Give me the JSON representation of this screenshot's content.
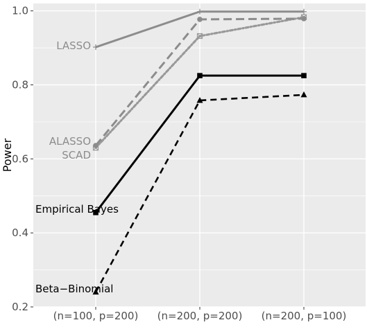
{
  "chart_data": {
    "type": "line",
    "title": "",
    "xlabel": "",
    "ylabel": "Power",
    "categories": [
      "(n=100, p=200)",
      "(n=200, p=200)",
      "(n=200, p=100)"
    ],
    "ylim": [
      0.2,
      1.02
    ],
    "yticks": [
      0.2,
      0.4,
      0.6,
      0.8,
      1.0
    ],
    "ytick_labels": [
      "0.2",
      "0.4",
      "0.6",
      "0.8",
      "1.0"
    ],
    "grid": true,
    "legend": "direct labels at left",
    "background_color": "#ebebeb",
    "grid_color": "#ffffff",
    "series": [
      {
        "name": "LASSO",
        "values": [
          0.902,
          0.998,
          0.998
        ],
        "color": "#8c8c8c",
        "dash": "solid",
        "marker": "plus"
      },
      {
        "name": "ALASSO",
        "values": [
          0.636,
          0.977,
          0.979
        ],
        "color": "#8c8c8c",
        "dash": "longdash",
        "marker": "circle"
      },
      {
        "name": "SCAD",
        "values": [
          0.63,
          0.932,
          0.983
        ],
        "color": "#999999",
        "dash": "dotdash",
        "marker": "boxx"
      },
      {
        "name": "Empirical Bayes",
        "values": [
          0.455,
          0.825,
          0.825
        ],
        "color": "#000000",
        "dash": "solid",
        "marker": "square"
      },
      {
        "name": "Beta−Binomial",
        "values": [
          0.24,
          0.758,
          0.773
        ],
        "color": "#000000",
        "dash": "dash",
        "marker": "triangle"
      }
    ]
  }
}
